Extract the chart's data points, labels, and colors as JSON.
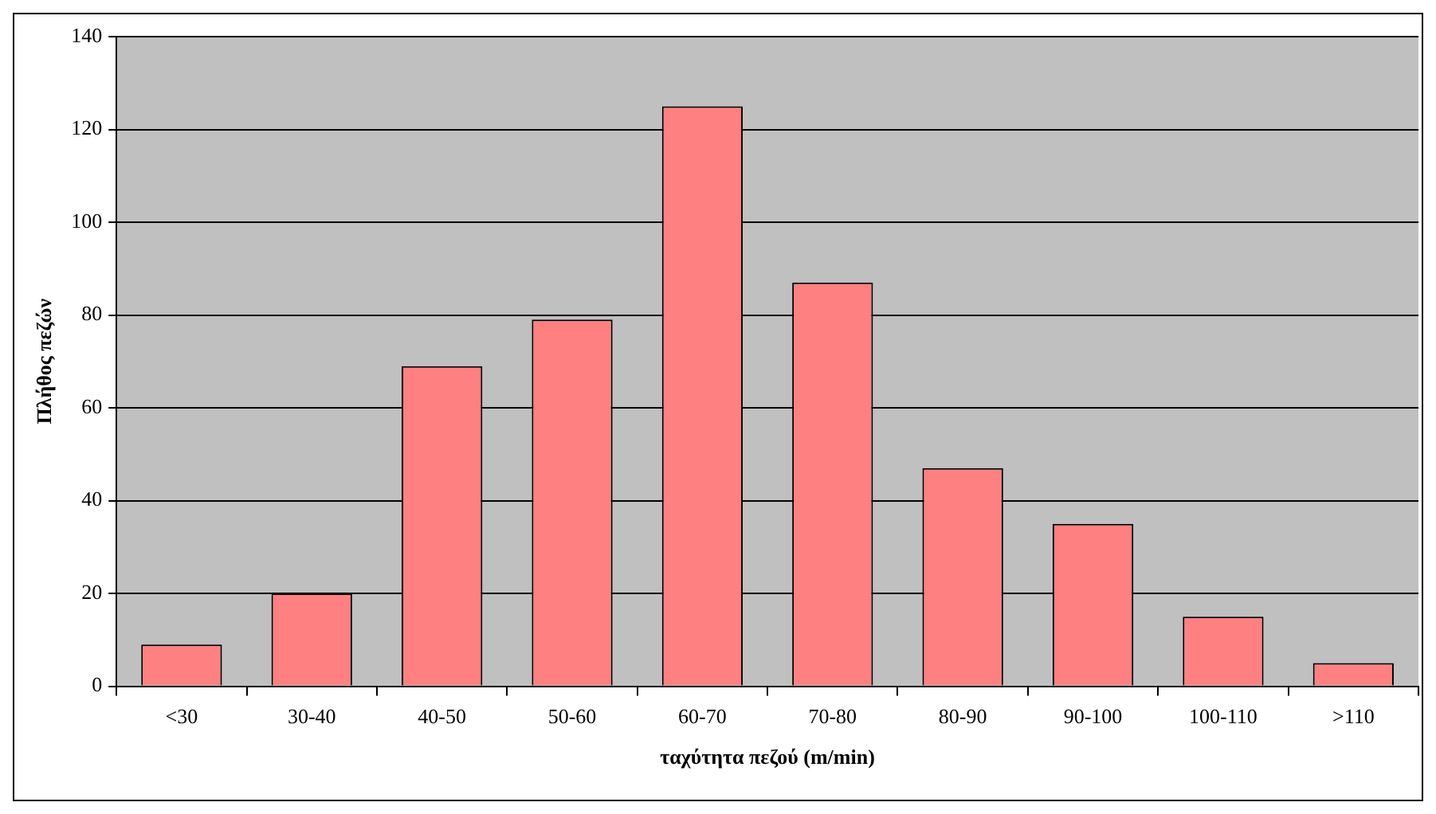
{
  "chart_data": {
    "type": "bar",
    "xlabel": "ταχύτητα πεζού (m/min)",
    "ylabel": "Πλήθος πεζών",
    "categories": [
      "<30",
      "30-40",
      "40-50",
      "50-60",
      "60-70",
      "70-80",
      "80-90",
      "90-100",
      "100-110",
      ">110"
    ],
    "values": [
      9,
      20,
      69,
      79,
      125,
      87,
      47,
      35,
      15,
      5
    ],
    "color": "#ff8080",
    "ylim": [
      0,
      140
    ],
    "yticks": [
      0,
      20,
      40,
      60,
      80,
      100,
      120,
      140
    ],
    "grid": "y",
    "legend": false
  }
}
